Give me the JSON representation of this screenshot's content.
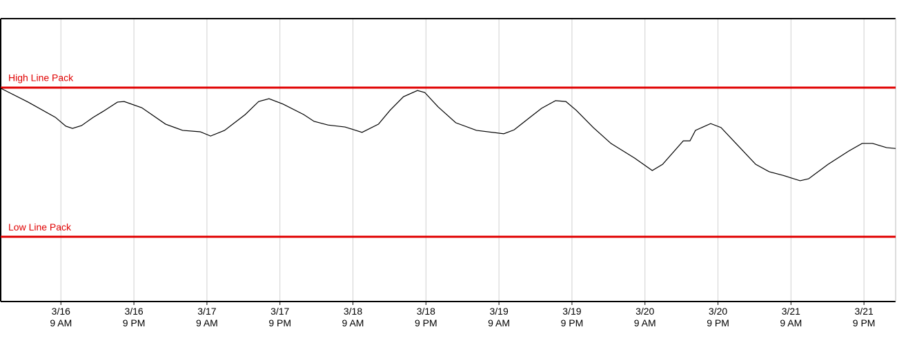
{
  "chart_data": {
    "type": "line",
    "x": [
      -9.9,
      -5.4,
      -0.9,
      0.8,
      1.9,
      3.4,
      5.3,
      7.0,
      9.3,
      10.4,
      13.3,
      17.2,
      20.0,
      22.9,
      24.6,
      26.9,
      30.3,
      32.5,
      34.2,
      36.5,
      39.9,
      41.6,
      43.9,
      46.7,
      49.5,
      52.2,
      54.1,
      56.3,
      58.6,
      59.8,
      62.0,
      64.9,
      68.3,
      72.8,
      74.5,
      76.8,
      79.0,
      81.3,
      83.0,
      84.7,
      87.5,
      90.4,
      94.3,
      97.2,
      98.9,
      102.3,
      103.4,
      104.3,
      106.8,
      108.5,
      111.3,
      114.2,
      116.4,
      118.7,
      121.5,
      122.9,
      126.1,
      129.5,
      131.7,
      133.4,
      135.7,
      137.2
    ],
    "series": [
      {
        "color": "#000000",
        "values": [
          75.4,
          70.5,
          65.1,
          62.0,
          61.2,
          62.2,
          65.1,
          67.3,
          70.5,
          70.7,
          68.5,
          62.7,
          60.5,
          60.0,
          58.5,
          60.5,
          66.1,
          70.7,
          71.7,
          69.8,
          66.1,
          63.7,
          62.4,
          61.7,
          59.8,
          62.7,
          67.6,
          72.4,
          74.6,
          73.9,
          68.8,
          63.2,
          60.5,
          59.3,
          60.7,
          64.6,
          68.3,
          71.0,
          70.7,
          67.6,
          61.5,
          55.9,
          50.7,
          46.3,
          48.5,
          56.8,
          56.8,
          60.5,
          62.9,
          61.5,
          55.1,
          48.5,
          45.9,
          44.6,
          42.7,
          43.4,
          48.5,
          53.2,
          55.9,
          55.9,
          54.4,
          54.1
        ]
      }
    ],
    "xlim": [
      -9.9,
      137.2
    ],
    "xticks": [
      {
        "value": 0,
        "label": "3/16\n9 AM"
      },
      {
        "value": 12,
        "label": "3/16\n9 PM"
      },
      {
        "value": 24,
        "label": "3/17\n9 AM"
      },
      {
        "value": 36,
        "label": "3/17\n9 PM"
      },
      {
        "value": 48,
        "label": "3/18\n9 AM"
      },
      {
        "value": 60,
        "label": "3/18\n9 PM"
      },
      {
        "value": 72,
        "label": "3/19\n9 AM"
      },
      {
        "value": 84,
        "label": "3/19\n9 PM"
      },
      {
        "value": 96,
        "label": "3/20\n9 AM"
      },
      {
        "value": 108,
        "label": "3/20\n9 PM"
      },
      {
        "value": 120,
        "label": "3/21\n9 AM"
      },
      {
        "value": 132,
        "label": "3/21\n9 PM"
      }
    ],
    "ylim": [
      0,
      100
    ],
    "grid": true,
    "reference_lines": [
      {
        "label": "High Line Pack",
        "value": 75.6,
        "color": "#e00000"
      },
      {
        "label": "Low Line Pack",
        "value": 22.9,
        "color": "#e00000"
      }
    ]
  }
}
